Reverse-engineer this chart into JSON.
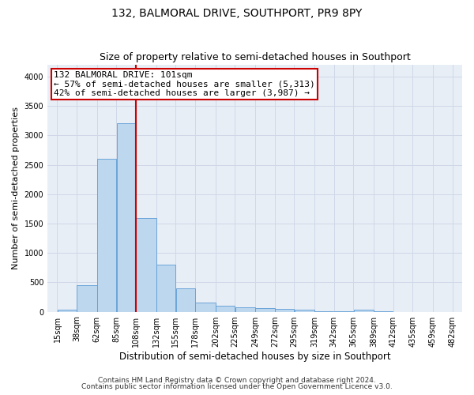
{
  "title": "132, BALMORAL DRIVE, SOUTHPORT, PR9 8PY",
  "subtitle": "Size of property relative to semi-detached houses in Southport",
  "xlabel": "Distribution of semi-detached houses by size in Southport",
  "ylabel": "Number of semi-detached properties",
  "footnote1": "Contains HM Land Registry data © Crown copyright and database right 2024.",
  "footnote2": "Contains public sector information licensed under the Open Government Licence v3.0.",
  "bar_edges": [
    15,
    38,
    62,
    85,
    108,
    132,
    155,
    178,
    202,
    225,
    249,
    272,
    295,
    319,
    342,
    365,
    389,
    412,
    435,
    459,
    482
  ],
  "bar_heights": [
    30,
    450,
    2600,
    3200,
    1600,
    800,
    400,
    150,
    100,
    80,
    60,
    50,
    30,
    10,
    5,
    40,
    5,
    0,
    0,
    0
  ],
  "bar_color": "#bdd7ee",
  "bar_edge_color": "#5b9bd5",
  "grid_color": "#d0d8e8",
  "background_color": "#e8eef6",
  "vline_x": 108,
  "vline_color": "#cc0000",
  "annotation_line1": "132 BALMORAL DRIVE: 101sqm",
  "annotation_line2": "← 57% of semi-detached houses are smaller (5,313)",
  "annotation_line3": "42% of semi-detached houses are larger (3,987) →",
  "annotation_box_color": "#cc0000",
  "ylim": [
    0,
    4200
  ],
  "yticks": [
    0,
    500,
    1000,
    1500,
    2000,
    2500,
    3000,
    3500,
    4000
  ],
  "xtick_labels": [
    "15sqm",
    "38sqm",
    "62sqm",
    "85sqm",
    "108sqm",
    "132sqm",
    "155sqm",
    "178sqm",
    "202sqm",
    "225sqm",
    "249sqm",
    "272sqm",
    "295sqm",
    "319sqm",
    "342sqm",
    "365sqm",
    "389sqm",
    "412sqm",
    "435sqm",
    "459sqm",
    "482sqm"
  ],
  "title_fontsize": 10,
  "subtitle_fontsize": 9,
  "xlabel_fontsize": 8.5,
  "ylabel_fontsize": 8,
  "tick_fontsize": 7,
  "annotation_fontsize": 8,
  "footnote_fontsize": 6.5
}
